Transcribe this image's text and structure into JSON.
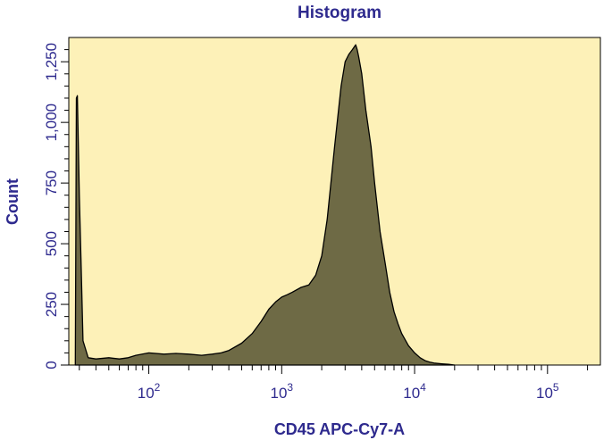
{
  "chart_data": {
    "type": "area",
    "title": "Histogram",
    "xlabel": "CD45 APC-Cy7-A",
    "ylabel": "Count",
    "x_scale": "log",
    "xlim": [
      25,
      250000
    ],
    "ylim": [
      0,
      1350
    ],
    "x_ticks": [
      {
        "value": 100,
        "base": "10",
        "exp": "2"
      },
      {
        "value": 1000,
        "base": "10",
        "exp": "3"
      },
      {
        "value": 10000,
        "base": "10",
        "exp": "4"
      },
      {
        "value": 100000,
        "base": "10",
        "exp": "5"
      }
    ],
    "y_ticks": [
      {
        "value": 0,
        "label": "0"
      },
      {
        "value": 250,
        "label": "250"
      },
      {
        "value": 500,
        "label": "500"
      },
      {
        "value": 750,
        "label": "750"
      },
      {
        "value": 1000,
        "label": "1,000"
      },
      {
        "value": 1250,
        "label": "1,250"
      }
    ],
    "grid": false,
    "colors": {
      "background": "#fdf1b8",
      "fill": "#6e6a45",
      "stroke": "#000000",
      "text": "#2e2a8e"
    },
    "series": [
      {
        "x": [
          28,
          28.5,
          29,
          30,
          31,
          32,
          35,
          40,
          50,
          60,
          70,
          80,
          100,
          130,
          160,
          200,
          250,
          300,
          350,
          400,
          500,
          600,
          700,
          800,
          900,
          1000,
          1100,
          1200,
          1400,
          1600,
          1800,
          2000,
          2200,
          2500,
          2800,
          3000,
          3200,
          3400,
          3600,
          3700,
          3800,
          4000,
          4300,
          4700,
          5000,
          5500,
          6000,
          6500,
          7000,
          7500,
          8000,
          9000,
          10000,
          11000,
          12000,
          13000,
          14000,
          16000,
          18000,
          20000
        ],
        "y": [
          0,
          1100,
          1110,
          700,
          400,
          100,
          30,
          25,
          30,
          25,
          30,
          40,
          50,
          45,
          48,
          45,
          40,
          45,
          50,
          60,
          90,
          130,
          180,
          230,
          260,
          280,
          290,
          300,
          320,
          330,
          370,
          450,
          600,
          900,
          1150,
          1250,
          1280,
          1300,
          1320,
          1300,
          1270,
          1200,
          1050,
          900,
          750,
          550,
          420,
          300,
          220,
          170,
          130,
          80,
          50,
          30,
          18,
          12,
          8,
          5,
          3,
          0
        ]
      }
    ]
  }
}
